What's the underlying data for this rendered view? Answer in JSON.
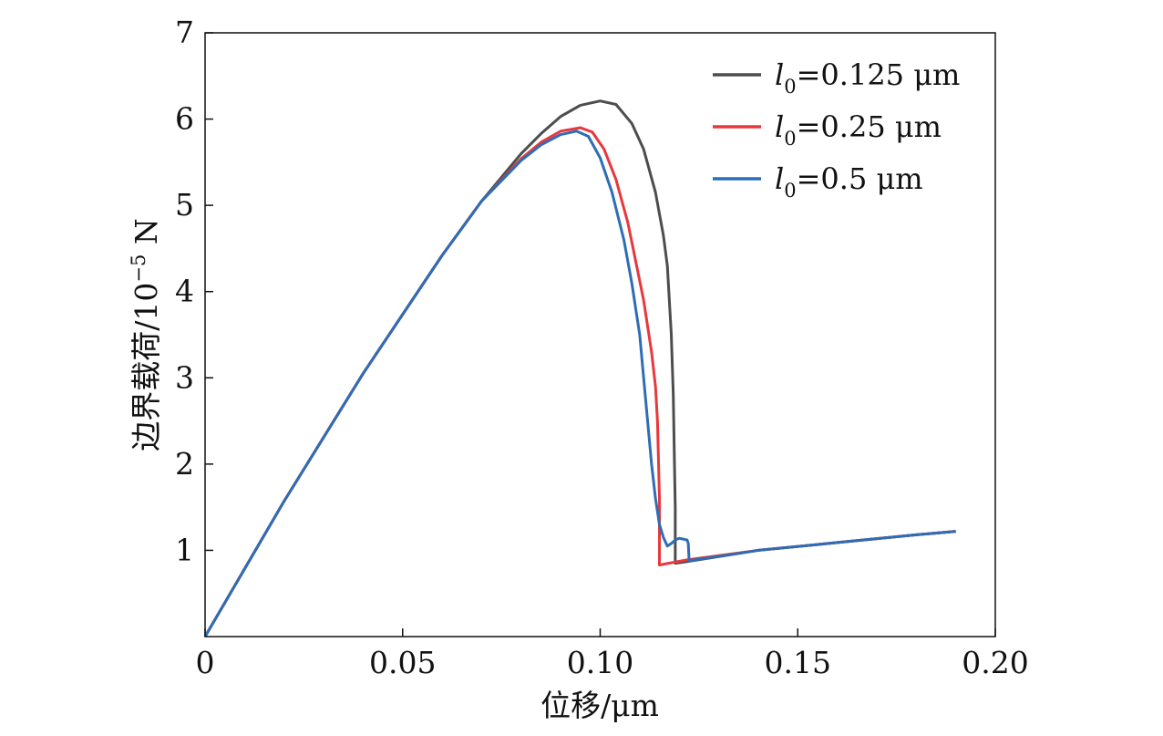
{
  "chart_data": {
    "type": "line",
    "xlabel": "位移/μm",
    "ylabel_main": "边界载荷/10",
    "ylabel_exp": "−5",
    "ylabel_unit": " N",
    "xlim": [
      0,
      0.2
    ],
    "ylim": [
      0,
      7
    ],
    "xticks": [
      0,
      0.05,
      0.1,
      0.15,
      0.2
    ],
    "xtick_labels": [
      "0",
      "0.05",
      "0.10",
      "0.15",
      "0.20"
    ],
    "yticks": [
      1,
      2,
      3,
      4,
      5,
      6,
      7
    ],
    "ytick_labels": [
      "1",
      "2",
      "3",
      "4",
      "5",
      "6",
      "7"
    ],
    "grid": false,
    "legend_position": "top-right",
    "series": [
      {
        "name_var": "l",
        "name_sub": "0",
        "name_rest": "=0.125 μm",
        "color": "#4d4d4d",
        "x": [
          0,
          0.02,
          0.04,
          0.06,
          0.07,
          0.08,
          0.085,
          0.09,
          0.095,
          0.1,
          0.104,
          0.108,
          0.111,
          0.114,
          0.116,
          0.117,
          0.118,
          0.1185,
          0.1188,
          0.119,
          0.119,
          0.122,
          0.14,
          0.16,
          0.18,
          0.19
        ],
        "y": [
          0,
          1.57,
          3.05,
          4.42,
          5.05,
          5.6,
          5.83,
          6.03,
          6.16,
          6.21,
          6.17,
          5.95,
          5.65,
          5.15,
          4.65,
          4.3,
          3.5,
          2.8,
          2.0,
          1.5,
          0.85,
          0.87,
          1.0,
          1.09,
          1.18,
          1.22
        ]
      },
      {
        "name_var": "l",
        "name_sub": "0",
        "name_rest": "=0.25 μm",
        "color": "#e8383d",
        "x": [
          0,
          0.02,
          0.04,
          0.06,
          0.07,
          0.08,
          0.085,
          0.09,
          0.095,
          0.098,
          0.101,
          0.104,
          0.107,
          0.109,
          0.111,
          0.112,
          0.113,
          0.114,
          0.1145,
          0.115,
          0.115,
          0.122,
          0.14,
          0.16,
          0.18,
          0.19
        ],
        "y": [
          0,
          1.57,
          3.05,
          4.42,
          5.05,
          5.54,
          5.73,
          5.86,
          5.9,
          5.85,
          5.65,
          5.3,
          4.8,
          4.35,
          3.9,
          3.6,
          3.3,
          2.9,
          2.5,
          1.6,
          0.83,
          0.89,
          1.0,
          1.09,
          1.18,
          1.22
        ]
      },
      {
        "name_var": "l",
        "name_sub": "0",
        "name_rest": "=0.5 μm",
        "color": "#2e6db5",
        "x": [
          0,
          0.02,
          0.04,
          0.06,
          0.07,
          0.08,
          0.085,
          0.09,
          0.094,
          0.097,
          0.1,
          0.103,
          0.106,
          0.108,
          0.11,
          0.111,
          0.112,
          0.113,
          0.114,
          0.115,
          0.116,
          0.117,
          0.118,
          0.119,
          0.1195,
          0.12,
          0.121,
          0.122,
          0.1223,
          0.1225,
          0.13,
          0.14,
          0.16,
          0.18,
          0.19
        ],
        "y": [
          0,
          1.57,
          3.05,
          4.42,
          5.05,
          5.52,
          5.7,
          5.82,
          5.86,
          5.8,
          5.55,
          5.15,
          4.6,
          4.1,
          3.5,
          3.0,
          2.5,
          2.0,
          1.6,
          1.3,
          1.15,
          1.05,
          1.08,
          1.12,
          1.13,
          1.14,
          1.13,
          1.12,
          1.08,
          0.88,
          0.93,
          1.0,
          1.09,
          1.18,
          1.22
        ]
      }
    ]
  }
}
